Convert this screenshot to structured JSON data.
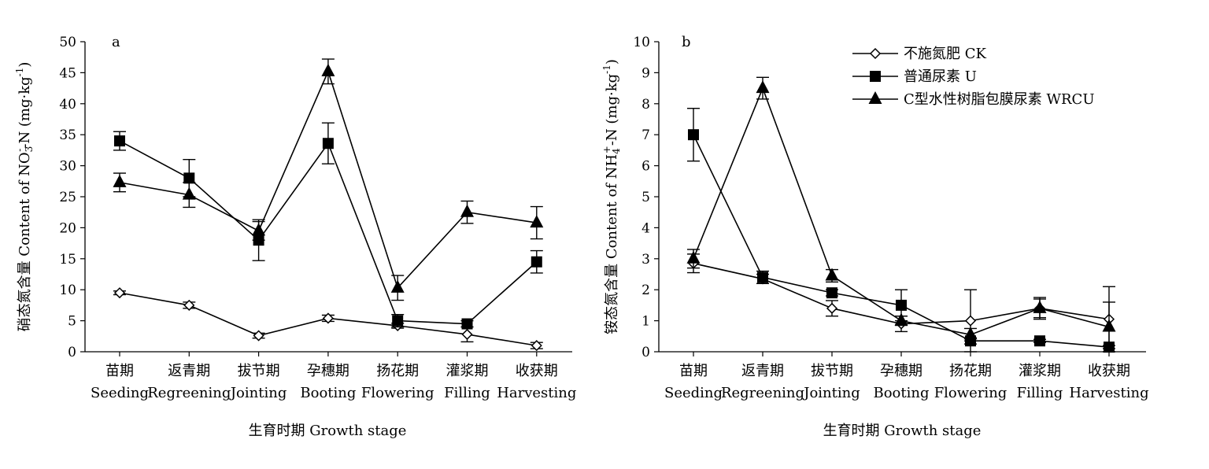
{
  "chart_data": [
    {
      "type": "line",
      "panel_label": "a",
      "categories": [
        "苗期|Seeding",
        "返青期|Regreening",
        "拔节期|Jointing",
        "孕穗期|Booting",
        "扬花期|Flowering",
        "灌浆期|Filling",
        "收获期|Harvesting"
      ],
      "categories_zh": [
        "苗期",
        "返青期",
        "拔节期",
        "孕穗期",
        "扬花期",
        "灌浆期",
        "收获期"
      ],
      "categories_en": [
        "Seeding",
        "Regreening",
        "Jointing",
        "Booting",
        "Flowering",
        "Filling",
        "Harvesting"
      ],
      "xlabel": "生育时期 Growth stage",
      "ylabel_parts": [
        "硝态氮含量 Content of NO",
        "3",
        "-",
        "-N (mg·kg",
        "-1",
        ")"
      ],
      "ylim": [
        0,
        50
      ],
      "yticks": [
        0,
        5,
        10,
        15,
        20,
        25,
        30,
        35,
        40,
        45,
        50
      ],
      "series": [
        {
          "key": "CK",
          "marker": "diamond-open",
          "values": [
            9.5,
            7.5,
            2.6,
            5.4,
            4.2,
            2.8,
            1.0
          ],
          "errors": [
            0.3,
            0.5,
            0.4,
            0.5,
            0.4,
            1.2,
            0.5
          ]
        },
        {
          "key": "U",
          "marker": "square-filled",
          "values": [
            34.0,
            28.0,
            18.0,
            33.6,
            5.0,
            4.5,
            14.5
          ],
          "errors": [
            1.5,
            3.0,
            3.3,
            3.3,
            1.0,
            0.5,
            1.8
          ]
        },
        {
          "key": "WRCU",
          "marker": "triangle-filled",
          "values": [
            27.3,
            25.3,
            19.5,
            45.2,
            10.3,
            22.5,
            20.8
          ],
          "errors": [
            1.5,
            2.0,
            1.5,
            2.0,
            2.0,
            1.8,
            2.6
          ]
        }
      ]
    },
    {
      "type": "line",
      "panel_label": "b",
      "categories_zh": [
        "苗期",
        "返青期",
        "拔节期",
        "孕穗期",
        "扬花期",
        "灌浆期",
        "收获期"
      ],
      "categories_en": [
        "Seeding",
        "Regreening",
        "Jointing",
        "Booting",
        "Flowering",
        "Filling",
        "Harvesting"
      ],
      "xlabel": "生育时期 Growth stage",
      "ylabel_parts": [
        "铵态氮含量 Content of NH",
        "4",
        "+",
        "-N (mg·kg",
        "-1",
        ")"
      ],
      "ylim": [
        0,
        10
      ],
      "yticks": [
        0,
        1,
        2,
        3,
        4,
        5,
        6,
        7,
        8,
        9,
        10
      ],
      "legend": {
        "position": "top-right",
        "entries": [
          {
            "key": "CK",
            "label": "不施氮肥 CK",
            "marker": "diamond-open"
          },
          {
            "key": "U",
            "label": "普通尿素 U",
            "marker": "square-filled"
          },
          {
            "key": "WRCU",
            "label": "C型水性树脂包膜尿素 WRCU",
            "marker": "triangle-filled"
          }
        ]
      },
      "series": [
        {
          "key": "CK",
          "marker": "diamond-open",
          "values": [
            2.85,
            2.35,
            1.4,
            0.9,
            1.0,
            1.4,
            1.05
          ],
          "errors": [
            0.3,
            0.15,
            0.25,
            0.25,
            1.0,
            0.3,
            1.05
          ]
        },
        {
          "key": "U",
          "marker": "square-filled",
          "values": [
            7.0,
            2.4,
            1.9,
            1.5,
            0.35,
            0.35,
            0.15
          ],
          "errors": [
            0.85,
            0.2,
            0.1,
            0.5,
            0.1,
            0.05,
            0.05
          ]
        },
        {
          "key": "WRCU",
          "marker": "triangle-filled",
          "values": [
            3.0,
            8.5,
            2.45,
            1.0,
            0.55,
            1.4,
            0.8
          ],
          "errors": [
            0.3,
            0.35,
            0.2,
            0.15,
            0.2,
            0.35,
            0.8
          ]
        }
      ]
    }
  ],
  "colors": {
    "line": "#000000",
    "background": "#ffffff"
  }
}
